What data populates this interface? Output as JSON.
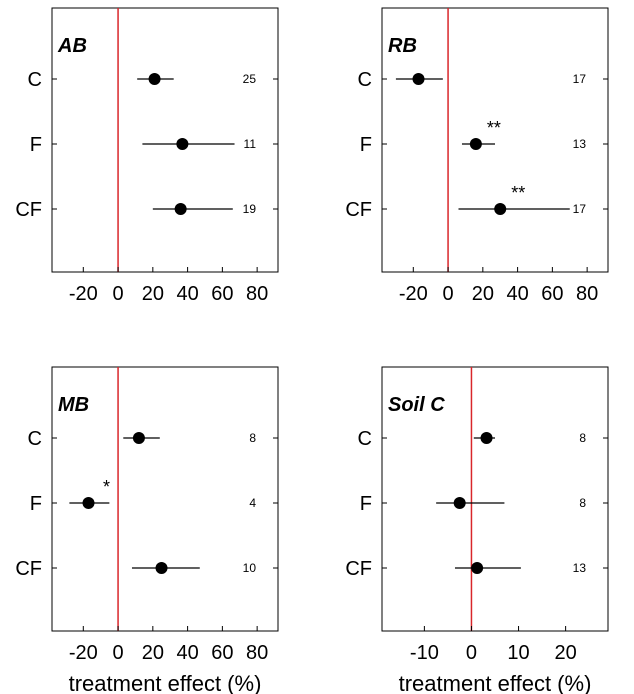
{
  "chart_data": [
    {
      "type": "forest",
      "title": "AB",
      "categories": [
        "C",
        "F",
        "CF"
      ],
      "values": [
        21,
        37,
        36
      ],
      "ci_low": [
        11,
        14,
        20
      ],
      "ci_high": [
        32,
        67,
        66
      ],
      "n": [
        "25",
        "11",
        "19"
      ],
      "significance": [
        "",
        "",
        ""
      ],
      "xlim": [
        -38,
        92
      ],
      "xticks": [
        -20,
        0,
        20,
        40,
        60,
        80
      ],
      "xlabel": "",
      "reference_line": 0
    },
    {
      "type": "forest",
      "title": "RB",
      "categories": [
        "C",
        "F",
        "CF"
      ],
      "values": [
        -17,
        16,
        30
      ],
      "ci_low": [
        -30,
        8,
        6
      ],
      "ci_high": [
        -3,
        27,
        70
      ],
      "n": [
        "17",
        "13",
        "17"
      ],
      "significance": [
        "",
        "**",
        "**"
      ],
      "xlim": [
        -38,
        92
      ],
      "xticks": [
        -20,
        0,
        20,
        40,
        60,
        80
      ],
      "xlabel": "",
      "reference_line": 0
    },
    {
      "type": "forest",
      "title": "MB",
      "categories": [
        "C",
        "F",
        "CF"
      ],
      "values": [
        12,
        -17,
        25
      ],
      "ci_low": [
        3,
        -28,
        8
      ],
      "ci_high": [
        24,
        -5,
        47
      ],
      "n": [
        "8",
        "4",
        "10"
      ],
      "significance": [
        "",
        "*",
        ""
      ],
      "xlim": [
        -38,
        92
      ],
      "xticks": [
        -20,
        0,
        20,
        40,
        60,
        80
      ],
      "xlabel": "treatment effect (%)",
      "reference_line": 0
    },
    {
      "type": "forest",
      "title": "Soil C",
      "categories": [
        "C",
        "F",
        "CF"
      ],
      "values": [
        3.2,
        -2.5,
        1.2
      ],
      "ci_low": [
        0.5,
        -7.5,
        -3.5
      ],
      "ci_high": [
        5.0,
        7.0,
        10.5
      ],
      "n": [
        "8",
        "8",
        "13"
      ],
      "significance": [
        "",
        "",
        ""
      ],
      "xlim": [
        -19,
        29
      ],
      "xticks": [
        -10,
        0,
        10,
        20
      ],
      "xlabel": "treatment effect (%)",
      "reference_line": 0
    }
  ],
  "colors": {
    "reference_line": "#d9262b",
    "points": "#000000",
    "frame": "#000000"
  }
}
